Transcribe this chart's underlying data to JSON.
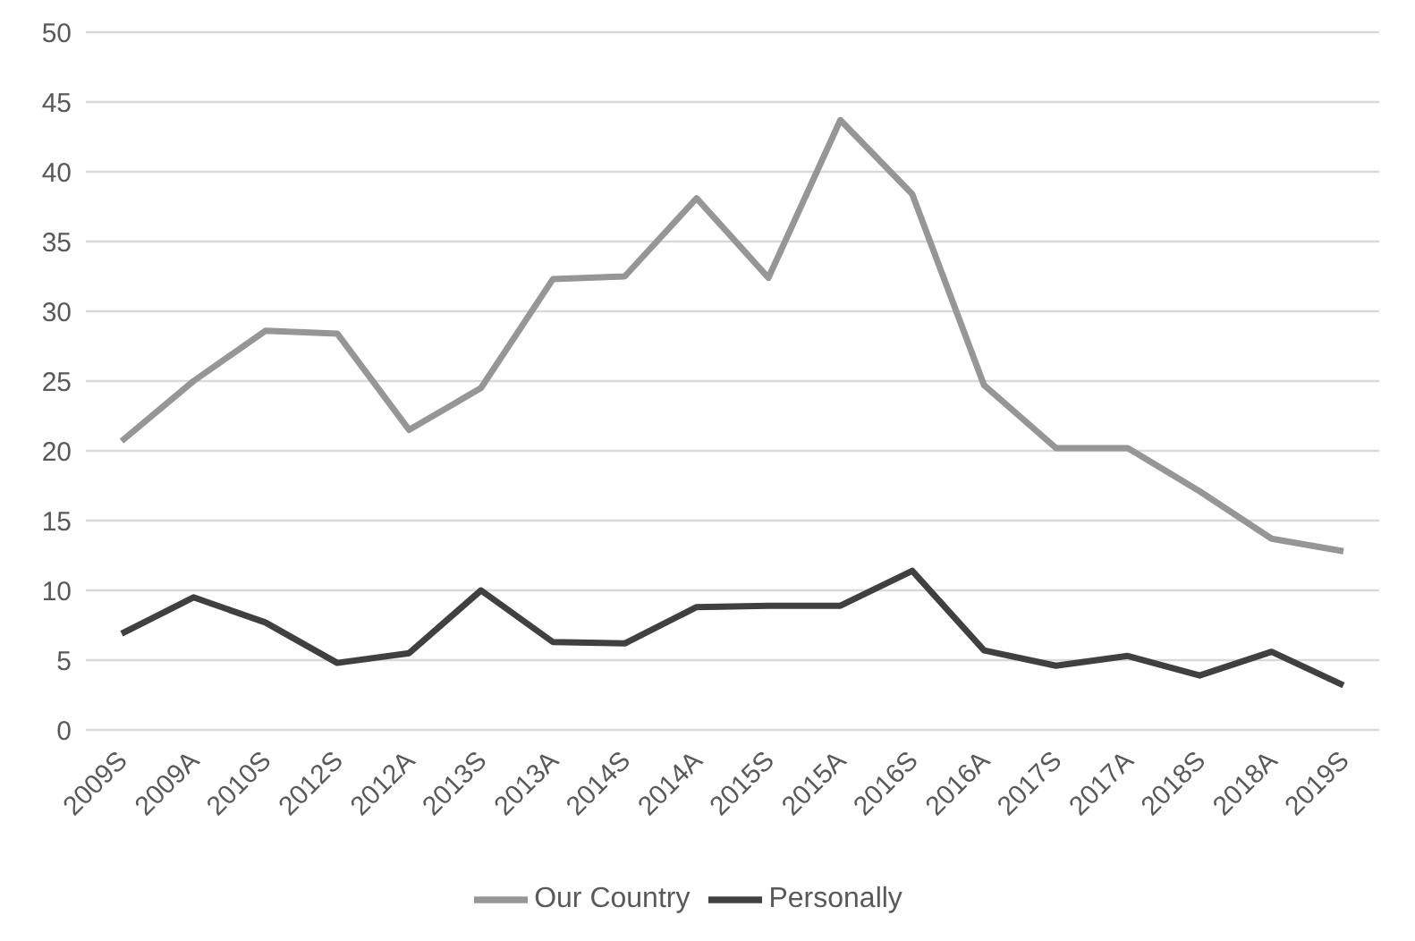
{
  "chart_data": {
    "type": "line",
    "categories": [
      "2009S",
      "2009A",
      "2010S",
      "2012S",
      "2012A",
      "2013S",
      "2013A",
      "2014S",
      "2014A",
      "2015S",
      "2015A",
      "2016S",
      "2016A",
      "2017S",
      "2017A",
      "2018S",
      "2018A",
      "2019S"
    ],
    "series": [
      {
        "name": "Our Country",
        "color": "#969696",
        "values": [
          20.7,
          25,
          28.6,
          28.4,
          21.5,
          24.5,
          32.3,
          32.5,
          38.1,
          32.4,
          43.7,
          38.4,
          24.7,
          20.2,
          20.2,
          17.1,
          13.7,
          12.8
        ]
      },
      {
        "name": "Personally",
        "color": "#404040",
        "values": [
          6.9,
          9.5,
          7.7,
          4.8,
          5.5,
          10,
          6.3,
          6.2,
          8.8,
          8.9,
          8.9,
          11.4,
          5.7,
          4.6,
          5.3,
          3.9,
          5.6,
          3.2
        ]
      }
    ],
    "ylim": [
      0,
      50
    ],
    "yticks": [
      0,
      5,
      10,
      15,
      20,
      25,
      30,
      35,
      40,
      45,
      50
    ],
    "grid": "y",
    "legend": "bottom",
    "marker": "none",
    "line_style": "solid"
  }
}
